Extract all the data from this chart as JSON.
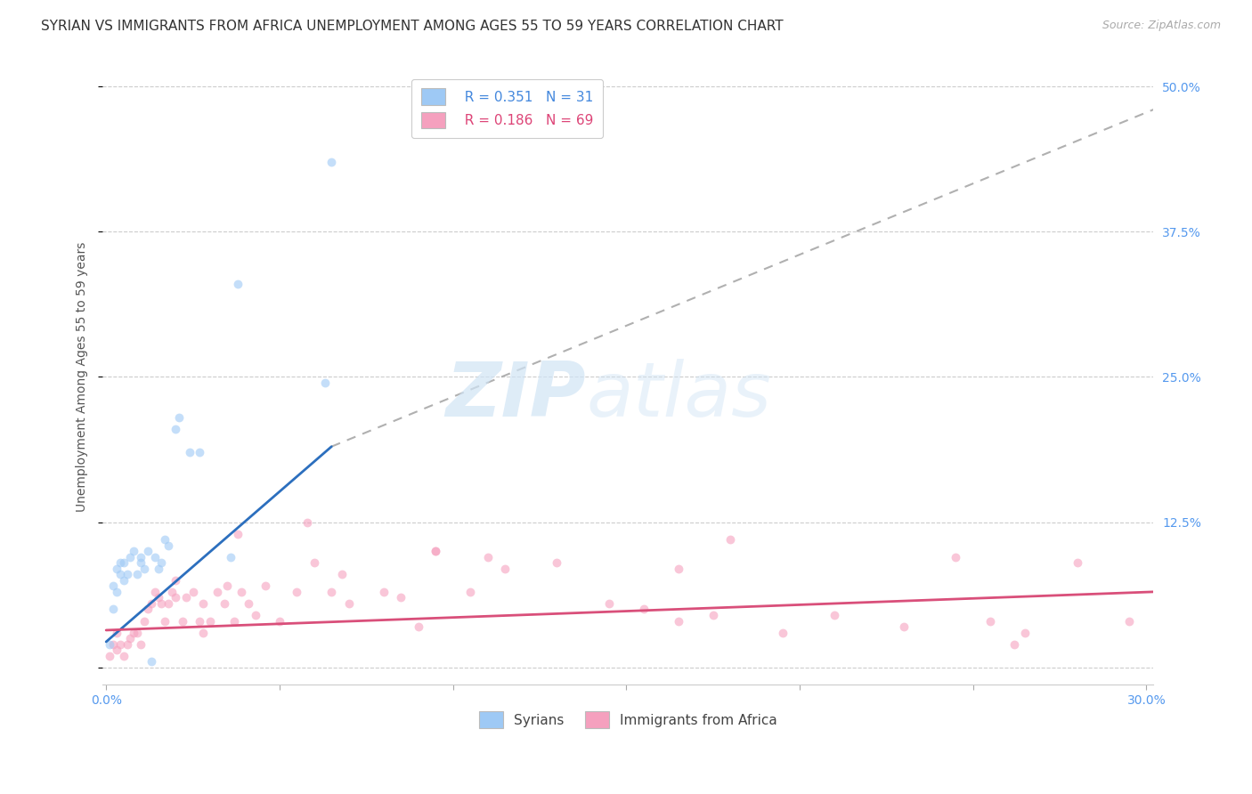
{
  "title": "SYRIAN VS IMMIGRANTS FROM AFRICA UNEMPLOYMENT AMONG AGES 55 TO 59 YEARS CORRELATION CHART",
  "source": "Source: ZipAtlas.com",
  "ylabel": "Unemployment Among Ages 55 to 59 years",
  "xlim": [
    -0.001,
    0.302
  ],
  "ylim": [
    -0.015,
    0.515
  ],
  "xticks": [
    0.0,
    0.05,
    0.1,
    0.15,
    0.2,
    0.25,
    0.3
  ],
  "xticklabels": [
    "0.0%",
    "",
    "",
    "",
    "",
    "",
    "30.0%"
  ],
  "yticks": [
    0.0,
    0.125,
    0.25,
    0.375,
    0.5
  ],
  "yticklabels_right": [
    "",
    "12.5%",
    "25.0%",
    "37.5%",
    "50.0%"
  ],
  "syrian_color": "#9ec9f5",
  "africa_color": "#f5a0be",
  "syrian_line_color": "#2c6fbe",
  "africa_line_color": "#d94f7a",
  "dashed_line_color": "#b0b0b0",
  "legend_R_syrian": "R = 0.351",
  "legend_N_syrian": "N = 31",
  "legend_R_africa": "R = 0.186",
  "legend_N_africa": "N = 69",
  "legend_label_syrian": "Syrians",
  "legend_label_africa": "Immigrants from Africa",
  "syrian_scatter_x": [
    0.001,
    0.002,
    0.002,
    0.003,
    0.003,
    0.004,
    0.004,
    0.005,
    0.005,
    0.006,
    0.007,
    0.008,
    0.009,
    0.01,
    0.01,
    0.011,
    0.012,
    0.013,
    0.014,
    0.015,
    0.016,
    0.017,
    0.018,
    0.02,
    0.021,
    0.024,
    0.027,
    0.036,
    0.038,
    0.063,
    0.065
  ],
  "syrian_scatter_y": [
    0.02,
    0.05,
    0.07,
    0.065,
    0.085,
    0.08,
    0.09,
    0.075,
    0.09,
    0.08,
    0.095,
    0.1,
    0.08,
    0.09,
    0.095,
    0.085,
    0.1,
    0.005,
    0.095,
    0.085,
    0.09,
    0.11,
    0.105,
    0.205,
    0.215,
    0.185,
    0.185,
    0.095,
    0.33,
    0.245,
    0.435
  ],
  "africa_scatter_x": [
    0.001,
    0.002,
    0.003,
    0.003,
    0.004,
    0.005,
    0.006,
    0.007,
    0.008,
    0.009,
    0.01,
    0.011,
    0.012,
    0.013,
    0.014,
    0.015,
    0.016,
    0.017,
    0.018,
    0.019,
    0.02,
    0.022,
    0.023,
    0.025,
    0.027,
    0.028,
    0.03,
    0.032,
    0.034,
    0.035,
    0.037,
    0.039,
    0.041,
    0.043,
    0.046,
    0.05,
    0.055,
    0.06,
    0.065,
    0.07,
    0.08,
    0.085,
    0.09,
    0.095,
    0.105,
    0.115,
    0.13,
    0.145,
    0.155,
    0.165,
    0.175,
    0.195,
    0.21,
    0.23,
    0.245,
    0.255,
    0.265,
    0.28,
    0.295,
    0.02,
    0.028,
    0.038,
    0.058,
    0.068,
    0.095,
    0.11,
    0.165,
    0.18,
    0.262
  ],
  "africa_scatter_y": [
    0.01,
    0.02,
    0.015,
    0.03,
    0.02,
    0.01,
    0.02,
    0.025,
    0.03,
    0.03,
    0.02,
    0.04,
    0.05,
    0.055,
    0.065,
    0.06,
    0.055,
    0.04,
    0.055,
    0.065,
    0.06,
    0.04,
    0.06,
    0.065,
    0.04,
    0.055,
    0.04,
    0.065,
    0.055,
    0.07,
    0.04,
    0.065,
    0.055,
    0.045,
    0.07,
    0.04,
    0.065,
    0.09,
    0.065,
    0.055,
    0.065,
    0.06,
    0.035,
    0.1,
    0.065,
    0.085,
    0.09,
    0.055,
    0.05,
    0.04,
    0.045,
    0.03,
    0.045,
    0.035,
    0.095,
    0.04,
    0.03,
    0.09,
    0.04,
    0.075,
    0.03,
    0.115,
    0.125,
    0.08,
    0.1,
    0.095,
    0.085,
    0.11,
    0.02
  ],
  "syrian_trend_x": [
    0.0,
    0.065
  ],
  "syrian_trend_y": [
    0.022,
    0.19
  ],
  "africa_trend_x": [
    0.0,
    0.302
  ],
  "africa_trend_y": [
    0.032,
    0.065
  ],
  "dashed_trend_x": [
    0.065,
    0.302
  ],
  "dashed_trend_y": [
    0.19,
    0.48
  ],
  "background_color": "#ffffff",
  "grid_color": "#cccccc",
  "title_fontsize": 11,
  "axis_label_fontsize": 10,
  "tick_fontsize": 10,
  "legend_fontsize": 11,
  "scatter_size": 50,
  "scatter_alpha": 0.6
}
